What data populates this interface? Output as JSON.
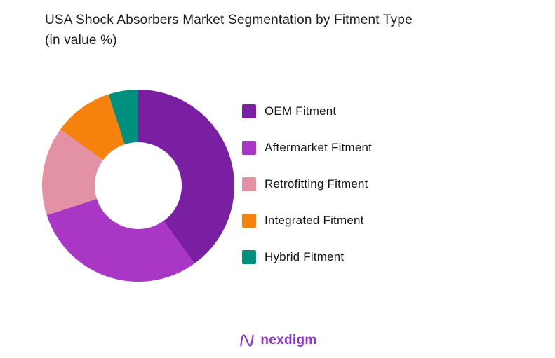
{
  "title": {
    "line1": "USA Shock Absorbers  Market Segmentation by Fitment Type",
    "line2": "(in value %)"
  },
  "chart_data": {
    "type": "pie",
    "subtype": "donut",
    "title": "USA Shock Absorbers Market Segmentation by Fitment Type (in value %)",
    "categories": [
      "OEM Fitment",
      "Aftermarket Fitment",
      "Retrofitting Fitment",
      "Integrated Fitment",
      "Hybrid Fitment"
    ],
    "values": [
      40,
      30,
      15,
      10,
      5
    ],
    "unit": "value %",
    "colors": [
      "#7B1FA2",
      "#A936C4",
      "#E392A6",
      "#F5820D",
      "#00917E"
    ],
    "start_angle_deg": 0,
    "direction": "clockwise",
    "hole_ratio": 0.45,
    "legend_position": "right",
    "grid": false
  },
  "footer": {
    "logo_text": "nexdigm",
    "logo_color": "#8C2FD0"
  }
}
